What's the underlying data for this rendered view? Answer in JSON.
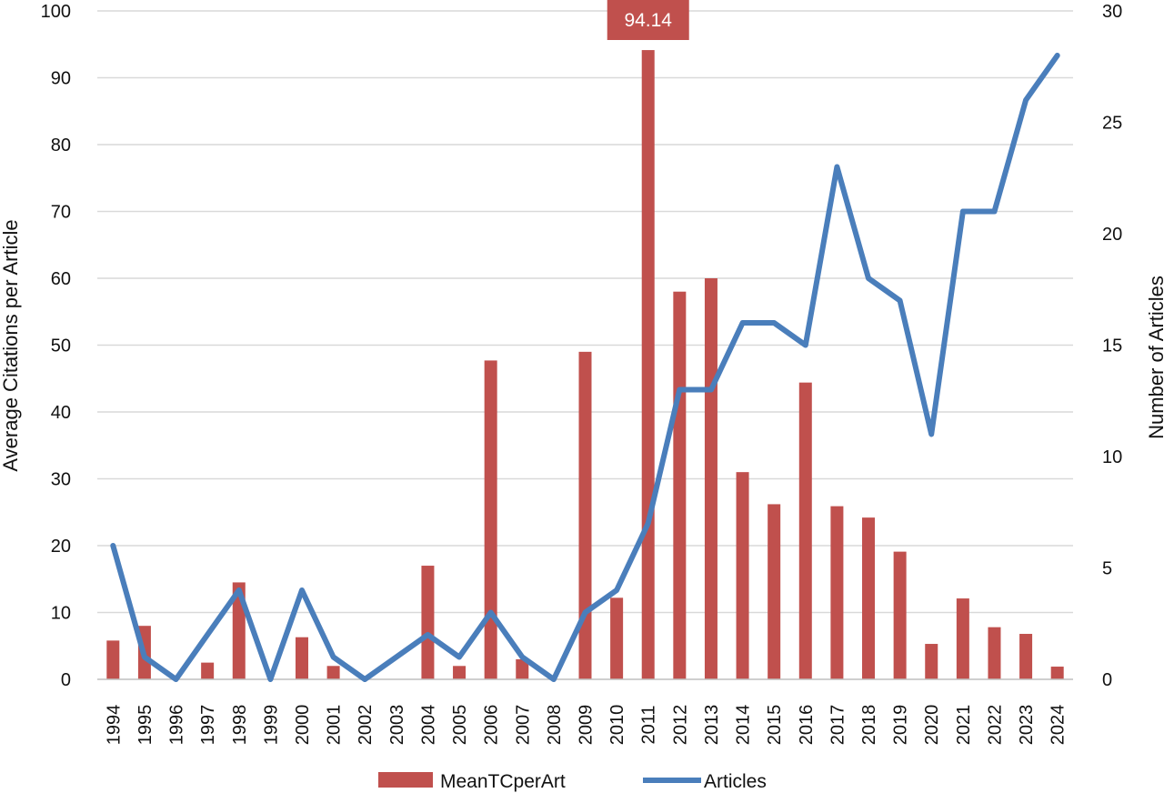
{
  "chart_data": {
    "type": "bar+line",
    "categories": [
      "1994",
      "1995",
      "1996",
      "1997",
      "1998",
      "1999",
      "2000",
      "2001",
      "2002",
      "2003",
      "2004",
      "2005",
      "2006",
      "2007",
      "2008",
      "2009",
      "2010",
      "2011",
      "2012",
      "2013",
      "2014",
      "2015",
      "2016",
      "2017",
      "2018",
      "2019",
      "2020",
      "2021",
      "2022",
      "2023",
      "2024"
    ],
    "series": [
      {
        "name": "MeanTCperArt",
        "kind": "bar",
        "axis": "left",
        "color": "#c0504d",
        "values": [
          5.8,
          8.0,
          0,
          2.5,
          14.5,
          0,
          6.3,
          2.0,
          0,
          0,
          17.0,
          2.0,
          47.7,
          3.0,
          0,
          49.0,
          12.2,
          94.14,
          58.0,
          60.0,
          31.0,
          26.2,
          44.4,
          25.9,
          24.2,
          19.1,
          5.3,
          12.1,
          7.8,
          6.8,
          1.9
        ]
      },
      {
        "name": "Articles",
        "kind": "line",
        "axis": "right",
        "color": "#4a7ebb",
        "values": [
          6,
          1,
          0,
          2,
          4,
          0,
          4,
          1,
          0,
          1,
          2,
          1,
          3,
          1,
          0,
          3,
          4,
          7,
          13,
          13,
          16,
          16,
          15,
          23,
          18,
          17,
          11,
          21,
          21,
          26,
          28
        ]
      }
    ],
    "ylabel_left": "Average Citations per Article",
    "ylabel_right": "Number of Articles",
    "ylim_left": [
      0,
      100
    ],
    "ylim_right": [
      0,
      30
    ],
    "yticks_left": [
      "0",
      "10",
      "20",
      "30",
      "40",
      "50",
      "60",
      "70",
      "80",
      "90",
      "100"
    ],
    "yticks_right": [
      "0",
      "5",
      "10",
      "15",
      "20",
      "25",
      "30"
    ],
    "grid": true,
    "legend": "bottom-center",
    "annotation": {
      "label": "94.14",
      "category": "2011"
    }
  }
}
